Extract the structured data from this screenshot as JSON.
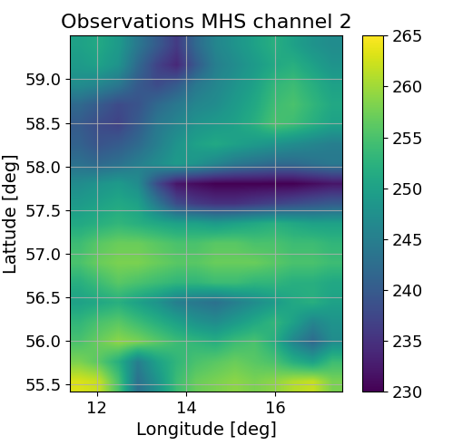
{
  "chart_data": {
    "type": "heatmap",
    "title": "Observations MHS channel 2",
    "x_label": "Longitude [deg]",
    "y_label": "Lattude [deg]",
    "xlim": [
      11.4,
      17.5
    ],
    "ylim": [
      55.42,
      59.5
    ],
    "xticks": [
      12,
      14,
      16
    ],
    "yticks": [
      55.5,
      56.0,
      56.5,
      57.0,
      57.5,
      58.0,
      58.5,
      59.0
    ],
    "grid": true,
    "colorbar": {
      "range": [
        230,
        265
      ],
      "ticks": [
        230,
        235,
        240,
        245,
        250,
        255,
        260,
        265
      ]
    },
    "cells": [
      [
        250,
        251,
        249,
        244,
        240,
        236,
        242,
        246,
        248,
        250,
        252,
        250,
        248,
        247
      ],
      [
        249,
        250,
        248,
        242,
        237,
        234,
        240,
        245,
        247,
        249,
        251,
        252,
        250,
        248
      ],
      [
        247,
        246,
        244,
        240,
        238,
        240,
        244,
        246,
        248,
        250,
        253,
        254,
        252,
        250
      ],
      [
        242,
        240,
        238,
        239,
        242,
        244,
        246,
        247,
        249,
        251,
        254,
        255,
        253,
        251
      ],
      [
        240,
        238,
        237,
        240,
        244,
        246,
        248,
        249,
        250,
        252,
        255,
        254,
        252,
        250
      ],
      [
        241,
        239,
        240,
        242,
        245,
        248,
        250,
        251,
        250,
        249,
        248,
        247,
        246,
        245
      ],
      [
        243,
        242,
        243,
        245,
        247,
        249,
        248,
        246,
        244,
        243,
        242,
        242,
        243,
        244
      ],
      [
        247,
        248,
        249,
        247,
        238,
        232,
        231,
        230,
        230,
        230,
        230,
        230,
        231,
        232
      ],
      [
        249,
        250,
        251,
        250,
        244,
        238,
        236,
        235,
        235,
        236,
        237,
        238,
        239,
        240
      ],
      [
        251,
        252,
        253,
        252,
        251,
        250,
        250,
        249,
        250,
        251,
        252,
        251,
        250,
        250
      ],
      [
        254,
        256,
        257,
        257,
        256,
        255,
        255,
        256,
        256,
        255,
        255,
        254,
        254,
        253
      ],
      [
        255,
        257,
        258,
        258,
        257,
        256,
        256,
        257,
        257,
        257,
        256,
        255,
        255,
        254
      ],
      [
        252,
        254,
        256,
        255,
        254,
        253,
        253,
        254,
        254,
        253,
        253,
        252,
        252,
        251
      ],
      [
        250,
        251,
        252,
        250,
        248,
        245,
        244,
        243,
        245,
        247,
        249,
        251,
        252,
        250
      ],
      [
        253,
        255,
        256,
        254,
        252,
        250,
        248,
        247,
        249,
        251,
        253,
        250,
        246,
        248
      ],
      [
        255,
        257,
        259,
        258,
        256,
        254,
        253,
        252,
        254,
        255,
        252,
        246,
        242,
        247
      ],
      [
        258,
        256,
        252,
        245,
        250,
        253,
        255,
        256,
        257,
        256,
        255,
        252,
        250,
        254
      ],
      [
        263,
        262,
        255,
        243,
        248,
        254,
        257,
        258,
        259,
        258,
        259,
        261,
        262,
        258
      ]
    ]
  }
}
